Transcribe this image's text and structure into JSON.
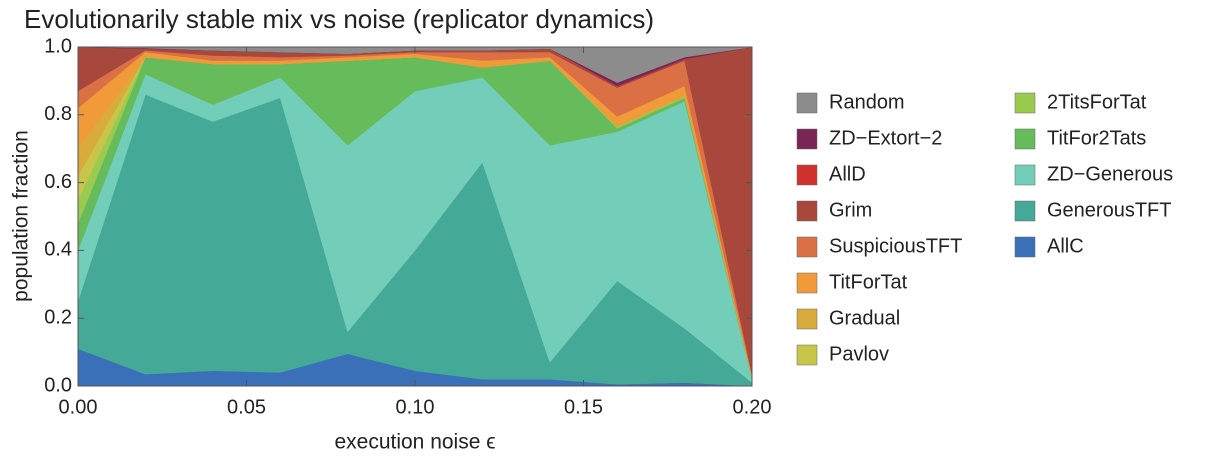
{
  "chart_data": {
    "type": "stacked_area",
    "title": "Evolutionarily stable mix vs noise (replicator dynamics)",
    "x_label": "execution noise ϵ",
    "y_label": "population fraction",
    "x": [
      0,
      0.02,
      0.04,
      0.06,
      0.08,
      0.1,
      0.12,
      0.14,
      0.16,
      0.18,
      0.2
    ],
    "xlim": [
      0,
      0.2
    ],
    "ylim": [
      0,
      1
    ],
    "xticks": [
      {
        "value": 0,
        "label": "0.00"
      },
      {
        "value": 0.05,
        "label": "0.05"
      },
      {
        "value": 0.1,
        "label": "0.10"
      },
      {
        "value": 0.15,
        "label": "0.15"
      },
      {
        "value": 0.2,
        "label": "0.20"
      }
    ],
    "yticks": [
      {
        "value": 0,
        "label": "0.0"
      },
      {
        "value": 0.2,
        "label": "0.2"
      },
      {
        "value": 0.4,
        "label": "0.4"
      },
      {
        "value": 0.6,
        "label": "0.6"
      },
      {
        "value": 0.8,
        "label": "0.8"
      },
      {
        "value": 1,
        "label": "1.0"
      }
    ],
    "series": [
      {
        "name": "AllC",
        "color": "#3a70b8",
        "values": [
          0.11,
          0.035,
          0.045,
          0.04,
          0.095,
          0.045,
          0.02,
          0.02,
          0.005,
          0.01,
          0
        ]
      },
      {
        "name": "GenerousTFT",
        "color": "#45a998",
        "values": [
          0.14,
          0.825,
          0.735,
          0.81,
          0.065,
          0.355,
          0.64,
          0.05,
          0.305,
          0.16,
          0.01
        ]
      },
      {
        "name": "ZD−Generous",
        "color": "#72cdb9",
        "values": [
          0.15,
          0.06,
          0.05,
          0.06,
          0.55,
          0.47,
          0.25,
          0.64,
          0.44,
          0.67,
          0.01
        ]
      },
      {
        "name": "TitFor2Tats",
        "color": "#66bb5a",
        "values": [
          0.08,
          0.05,
          0.12,
          0.04,
          0.25,
          0.1,
          0.03,
          0.25,
          0.01,
          0.01,
          0.005
        ]
      },
      {
        "name": "2TitsForTat",
        "color": "#9bcb4e",
        "values": [
          0.07,
          0,
          0,
          0,
          0,
          0,
          0,
          0,
          0.005,
          0.005,
          0
        ]
      },
      {
        "name": "Pavlov",
        "color": "#c8c54a",
        "values": [
          0.07,
          0,
          0,
          0,
          0,
          0,
          0,
          0,
          0,
          0,
          0
        ]
      },
      {
        "name": "Gradual",
        "color": "#d9ab3c",
        "values": [
          0.08,
          0,
          0,
          0,
          0,
          0,
          0,
          0,
          0,
          0,
          0
        ]
      },
      {
        "name": "TitForTat",
        "color": "#f09a3a",
        "values": [
          0.12,
          0.015,
          0.01,
          0.01,
          0.01,
          0.01,
          0.02,
          0.01,
          0.03,
          0.03,
          0.005
        ]
      },
      {
        "name": "SuspiciousTFT",
        "color": "#dc7045",
        "values": [
          0.05,
          0.005,
          0.015,
          0.01,
          0.005,
          0.005,
          0.025,
          0.015,
          0.085,
          0.075,
          0.005
        ]
      },
      {
        "name": "Grim",
        "color": "#a8473c",
        "values": [
          0.13,
          0.005,
          0.015,
          0.015,
          0.005,
          0.005,
          0.005,
          0.01,
          0.005,
          0.005,
          0.965
        ]
      },
      {
        "name": "AllD",
        "color": "#d1322e",
        "values": [
          0,
          0,
          0,
          0,
          0,
          0,
          0,
          0,
          0,
          0,
          0
        ]
      },
      {
        "name": "ZD−Extort−2",
        "color": "#7b2557",
        "values": [
          0,
          0.002,
          0,
          0,
          0,
          0,
          0,
          0,
          0.01,
          0.005,
          0
        ]
      },
      {
        "name": "Random",
        "color": "#8c8c8c",
        "values": [
          0,
          0.003,
          0.01,
          0.015,
          0.02,
          0.01,
          0.01,
          0.005,
          0.105,
          0.03,
          0
        ]
      }
    ]
  }
}
